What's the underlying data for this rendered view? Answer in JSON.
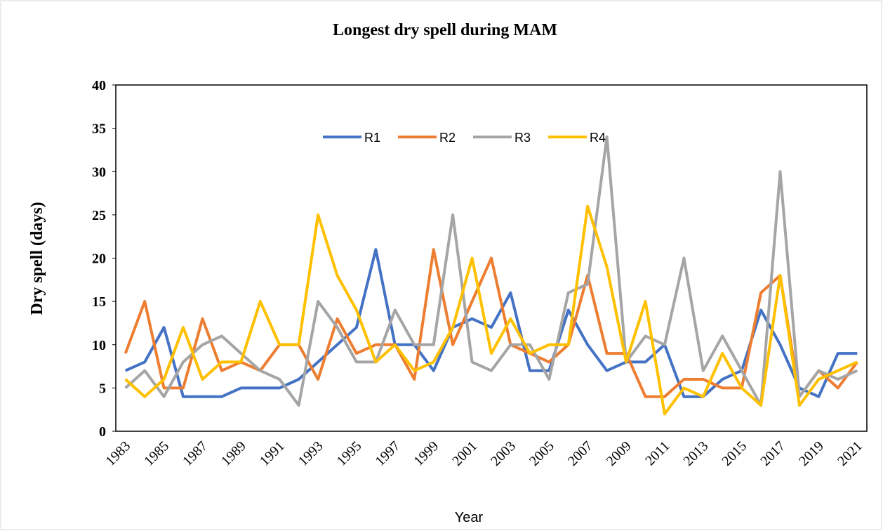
{
  "chart_data": {
    "type": "line",
    "title": "Longest dry spell during MAM",
    "x_label": "Year",
    "y_label": "Dry spell (days)",
    "categories": [
      "1983",
      null,
      "1985",
      null,
      "1987",
      null,
      "1989",
      null,
      "1991",
      null,
      "1993",
      null,
      "1995",
      null,
      "1997",
      null,
      "1999",
      null,
      "2001",
      null,
      "2003",
      null,
      "2005",
      null,
      "2007",
      null,
      "2009",
      null,
      "2011",
      null,
      "2013",
      null,
      "2015",
      null,
      "2017",
      null,
      "2019",
      null,
      "2021"
    ],
    "series": [
      {
        "name": "R1",
        "color": "#4472c4",
        "values": [
          7,
          8,
          12,
          4,
          4,
          4,
          5,
          5,
          5,
          6,
          8,
          10,
          12,
          21,
          10,
          10,
          7,
          12,
          13,
          12,
          16,
          7,
          7,
          14,
          10,
          7,
          8,
          8,
          10,
          4,
          4,
          6,
          7,
          14,
          10,
          5,
          4,
          9,
          9
        ]
      },
      {
        "name": "R2",
        "color": "#ed7d31",
        "values": [
          9,
          15,
          5,
          5,
          13,
          7,
          8,
          7,
          10,
          10,
          6,
          13,
          9,
          10,
          10,
          6,
          21,
          10,
          15,
          20,
          10,
          9,
          8,
          10,
          18,
          9,
          9,
          4,
          4,
          6,
          6,
          5,
          5,
          16,
          18,
          4,
          7,
          5,
          8
        ]
      },
      {
        "name": "R3",
        "color": "#a5a5a5",
        "values": [
          5,
          7,
          4,
          8,
          10,
          11,
          9,
          7,
          6,
          3,
          15,
          12,
          8,
          8,
          14,
          10,
          10,
          25,
          8,
          7,
          10,
          10,
          6,
          16,
          17,
          34,
          8,
          11,
          10,
          20,
          7,
          11,
          7,
          3,
          30,
          4,
          7,
          6,
          7
        ]
      },
      {
        "name": "R4",
        "color": "#ffc000",
        "values": [
          6,
          4,
          6,
          12,
          6,
          8,
          8,
          15,
          10,
          10,
          25,
          18,
          14,
          8,
          10,
          7,
          8,
          12,
          20,
          9,
          13,
          9,
          10,
          10,
          26,
          19,
          8,
          15,
          2,
          5,
          4,
          9,
          5,
          3,
          18,
          3,
          6,
          7,
          8
        ]
      }
    ],
    "ylim": [
      0,
      40
    ],
    "yticks": [
      0,
      5,
      10,
      15,
      20,
      25,
      30,
      35,
      40
    ],
    "grid": false,
    "legend": "top"
  }
}
